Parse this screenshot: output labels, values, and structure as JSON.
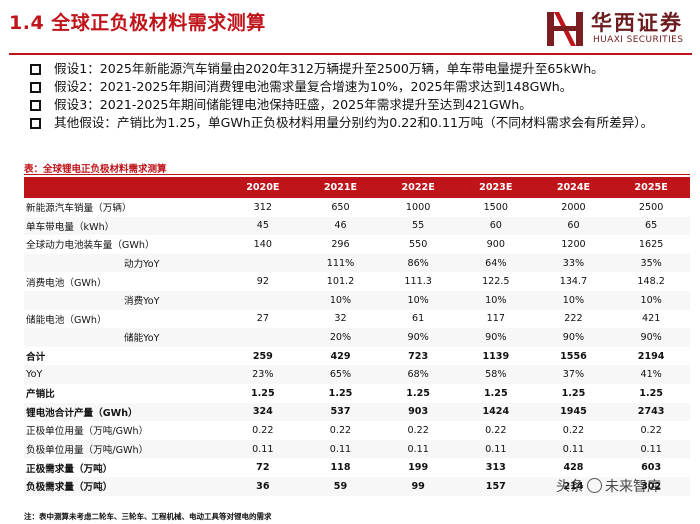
{
  "header": {
    "title": "1.4 全球正负极材料需求测算",
    "brand_cn": "华西证券",
    "brand_en": "HUAXI SECURITIES",
    "accent_color": "#c0141b"
  },
  "assumptions": [
    "假设1：2025年新能源汽车销量由2020年312万辆提升至2500万辆，单车带电量提升至65kWh。",
    "假设2：2021-2025年期间消费锂电池需求量复合增速为10%，2025年需求达到148GWh。",
    "假设3：2021-2025年期间储能锂电池保持旺盛，2025年需求提升至达到421GWh。",
    "其他假设：产销比为1.25，单GWh正负极材料用量分别约为0.22和0.11万吨（不同材料需求会有所差异）。"
  ],
  "table": {
    "caption": "表：全球锂电正负极材料需求测算",
    "columns": [
      "",
      "2020E",
      "2021E",
      "2022E",
      "2023E",
      "2024E",
      "2025E"
    ],
    "rows": [
      {
        "label": "新能源汽车销量（万辆）",
        "values": [
          "312",
          "650",
          "1000",
          "1500",
          "2000",
          "2500"
        ],
        "bold": false,
        "sub": false
      },
      {
        "label": "单车带电量（kWh）",
        "values": [
          "45",
          "46",
          "55",
          "60",
          "60",
          "65"
        ],
        "bold": false,
        "sub": false
      },
      {
        "label": "全球动力电池装车量（GWh）",
        "values": [
          "140",
          "296",
          "550",
          "900",
          "1200",
          "1625"
        ],
        "bold": false,
        "sub": false
      },
      {
        "label": "动力YoY",
        "values": [
          "",
          "111%",
          "86%",
          "64%",
          "33%",
          "35%"
        ],
        "bold": false,
        "sub": true
      },
      {
        "label": "消费电池（GWh）",
        "values": [
          "92",
          "101.2",
          "111.3",
          "122.5",
          "134.7",
          "148.2"
        ],
        "bold": false,
        "sub": false
      },
      {
        "label": "消费YoY",
        "values": [
          "",
          "10%",
          "10%",
          "10%",
          "10%",
          "10%"
        ],
        "bold": false,
        "sub": true
      },
      {
        "label": "储能电池（GWh）",
        "values": [
          "27",
          "32",
          "61",
          "117",
          "222",
          "421"
        ],
        "bold": false,
        "sub": false
      },
      {
        "label": "储能YoY",
        "values": [
          "",
          "20%",
          "90%",
          "90%",
          "90%",
          "90%"
        ],
        "bold": false,
        "sub": true
      },
      {
        "label": "合计",
        "values": [
          "259",
          "429",
          "723",
          "1139",
          "1556",
          "2194"
        ],
        "bold": true,
        "sub": false
      },
      {
        "label": "YoY",
        "values": [
          "23%",
          "65%",
          "68%",
          "58%",
          "37%",
          "41%"
        ],
        "bold": false,
        "sub": false
      },
      {
        "label": "产销比",
        "values": [
          "1.25",
          "1.25",
          "1.25",
          "1.25",
          "1.25",
          "1.25"
        ],
        "bold": true,
        "sub": false
      },
      {
        "label": "锂电池合计产量（GWh）",
        "values": [
          "324",
          "537",
          "903",
          "1424",
          "1945",
          "2743"
        ],
        "bold": true,
        "sub": false
      },
      {
        "label": "正极单位用量（万吨/GWh）",
        "values": [
          "0.22",
          "0.22",
          "0.22",
          "0.22",
          "0.22",
          "0.22"
        ],
        "bold": false,
        "sub": false
      },
      {
        "label": "负极单位用量（万吨/GWh）",
        "values": [
          "0.11",
          "0.11",
          "0.11",
          "0.11",
          "0.11",
          "0.11"
        ],
        "bold": false,
        "sub": false
      },
      {
        "label": "正极需求量（万吨）",
        "values": [
          "72",
          "118",
          "199",
          "313",
          "428",
          "603"
        ],
        "bold": true,
        "sub": false
      },
      {
        "label": "负极需求量（万吨）",
        "values": [
          "36",
          "59",
          "99",
          "157",
          "214",
          "302"
        ],
        "bold": true,
        "sub": false
      }
    ]
  },
  "footnote": "注：表中测算未考虑二轮车、三轮车、工程机械、电动工具等对锂电的需求",
  "watermark": {
    "left": "头条",
    "right": "未来智库"
  }
}
